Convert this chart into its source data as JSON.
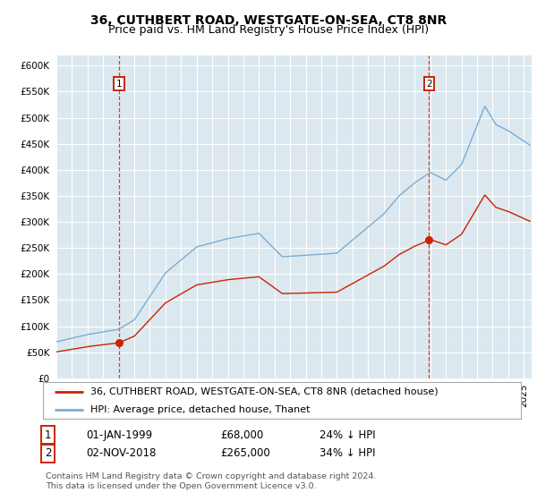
{
  "title": "36, CUTHBERT ROAD, WESTGATE-ON-SEA, CT8 8NR",
  "subtitle": "Price paid vs. HM Land Registry's House Price Index (HPI)",
  "ylim": [
    0,
    620000
  ],
  "yticks": [
    0,
    50000,
    100000,
    150000,
    200000,
    250000,
    300000,
    350000,
    400000,
    450000,
    500000,
    550000,
    600000
  ],
  "xlim_start": 1995,
  "xlim_end": 2025.5,
  "bg_color": "#dce8f0",
  "sale1_year": 1999.0,
  "sale1_price": 68000,
  "sale2_year": 2018.92,
  "sale2_price": 265000,
  "legend_property": "36, CUTHBERT ROAD, WESTGATE-ON-SEA, CT8 8NR (detached house)",
  "legend_hpi": "HPI: Average price, detached house, Thanet",
  "note1_label": "1",
  "note1_date": "01-JAN-1999",
  "note1_price": "£68,000",
  "note1_hpi": "24% ↓ HPI",
  "note2_label": "2",
  "note2_date": "02-NOV-2018",
  "note2_price": "£265,000",
  "note2_hpi": "34% ↓ HPI",
  "footer": "Contains HM Land Registry data © Crown copyright and database right 2024.\nThis data is licensed under the Open Government Licence v3.0.",
  "hpi_color": "#7aadd4",
  "sale_color": "#cc2200",
  "title_fontsize": 10,
  "subtitle_fontsize": 9,
  "tick_fontsize": 7.5,
  "legend_fontsize": 8,
  "note_fontsize": 8.5,
  "footer_fontsize": 6.8
}
